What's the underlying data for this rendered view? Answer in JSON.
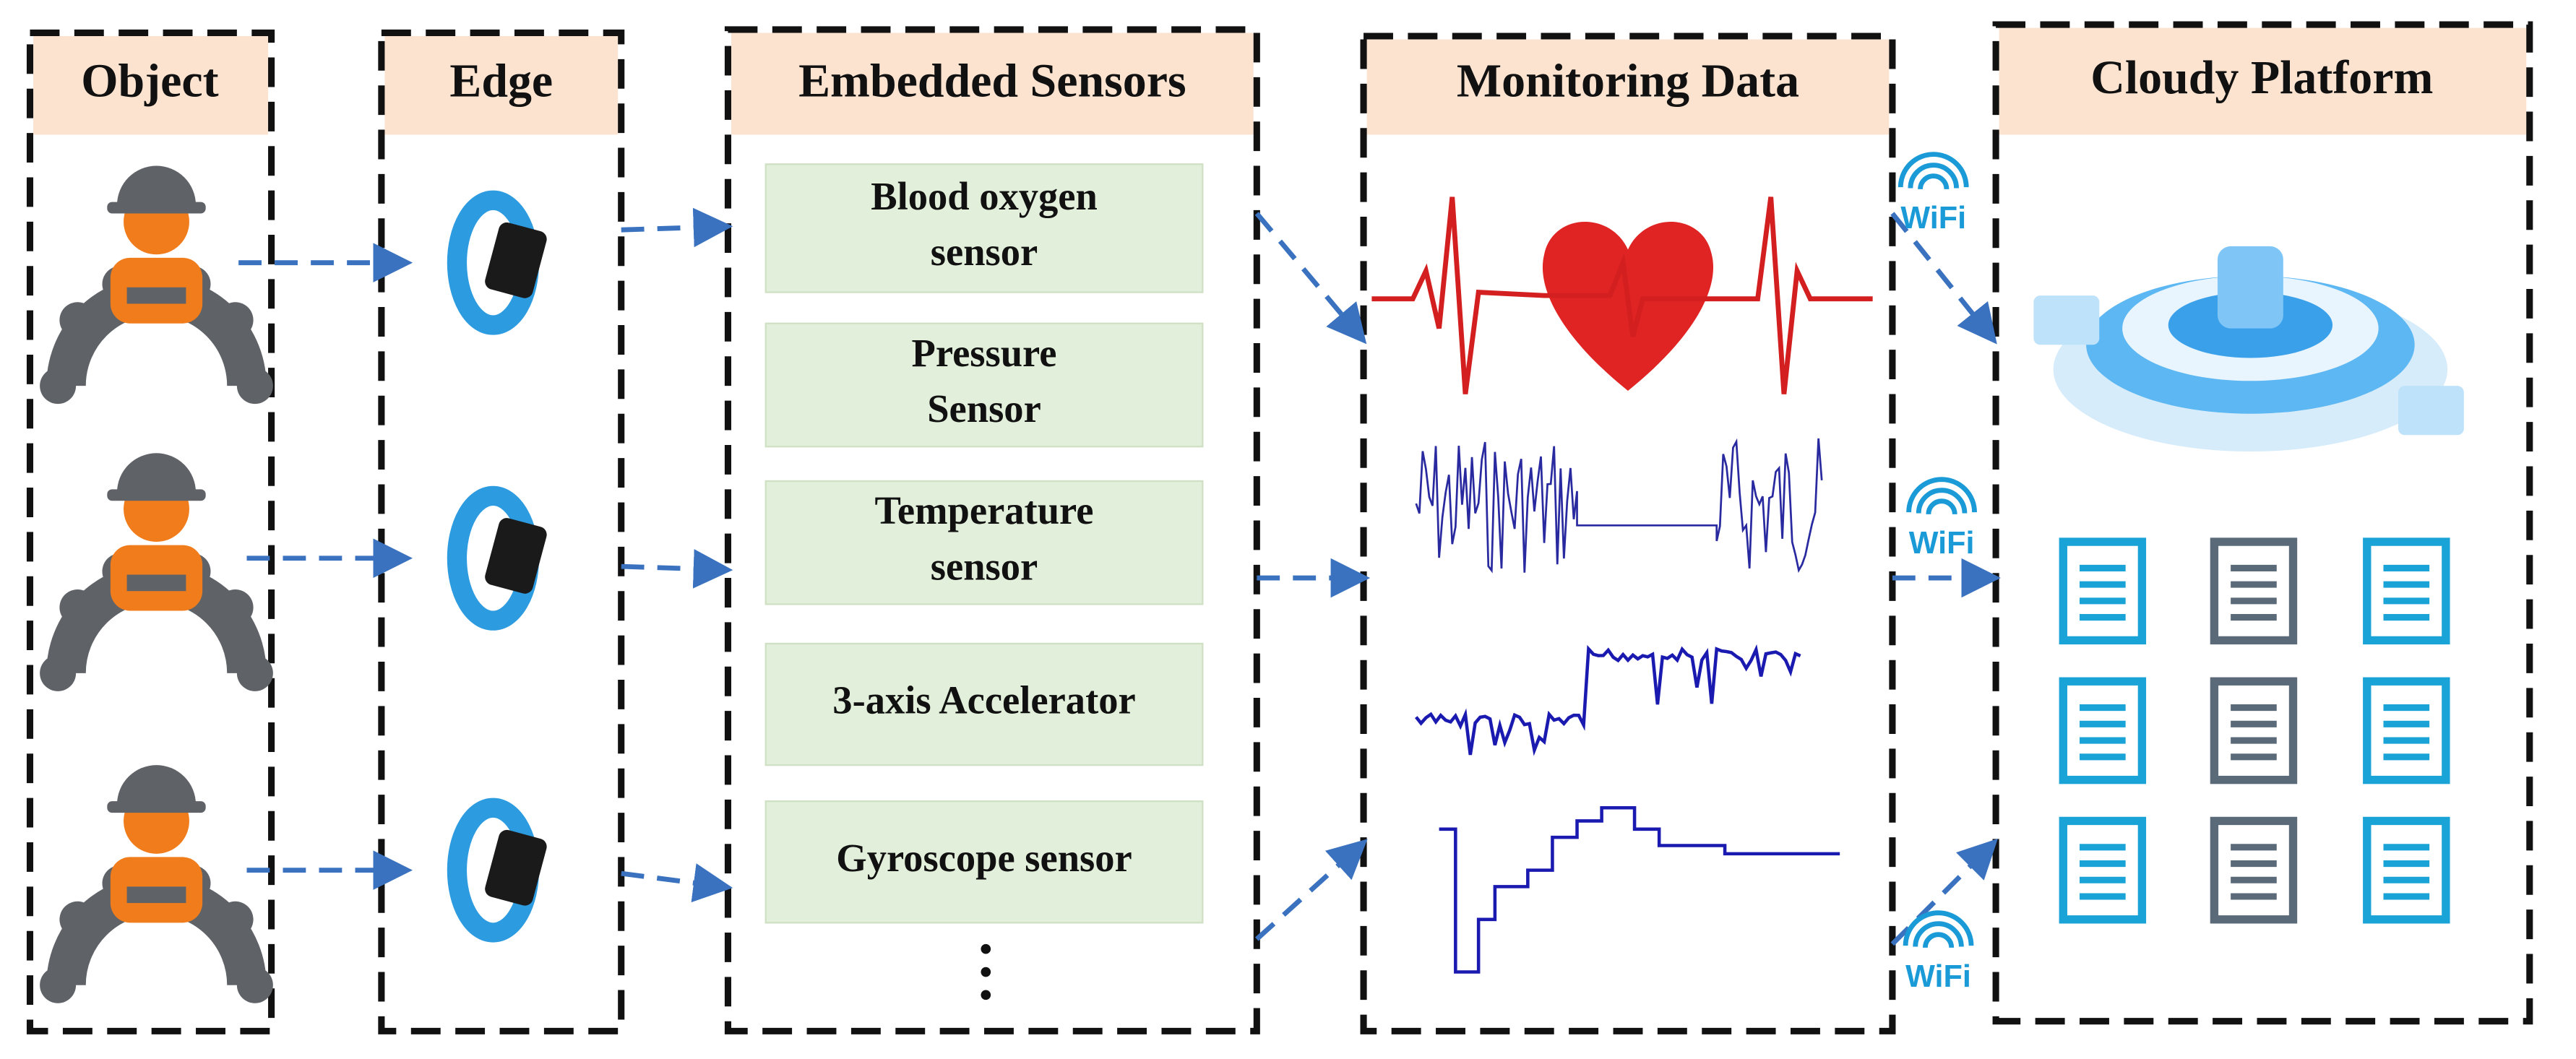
{
  "columns": [
    {
      "title": "Object"
    },
    {
      "title": "Edge"
    },
    {
      "title": "Embedded Sensors"
    },
    {
      "title": "Monitoring Data"
    },
    {
      "title": "Cloudy Platform"
    }
  ],
  "sensors": [
    {
      "lines": [
        "Blood oxygen",
        "sensor"
      ]
    },
    {
      "lines": [
        "Pressure",
        "Sensor"
      ]
    },
    {
      "lines": [
        "Temperature",
        "sensor"
      ]
    },
    {
      "lines": [
        "3-axis Accelerator"
      ]
    },
    {
      "lines": [
        "Gyroscope sensor"
      ]
    }
  ],
  "wifi_labels": [
    "WiFi",
    "WiFi",
    "WiFi"
  ]
}
